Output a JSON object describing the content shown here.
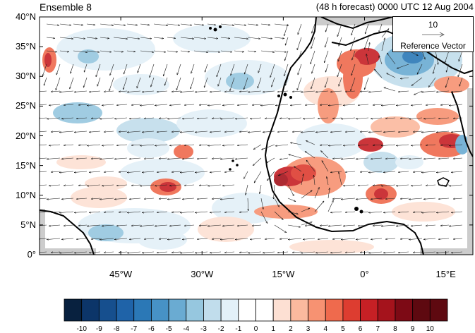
{
  "header": {
    "left_title": "Ensemble 8",
    "right_title": "(48 h forecast) 0000 UTC 12 Aug 2004"
  },
  "map": {
    "lat_labels": [
      "40°N",
      "35°N",
      "30°N",
      "25°N",
      "20°N",
      "15°N",
      "10°N",
      "5°N",
      "0°"
    ],
    "lon_labels": [
      "45°W",
      "30°W",
      "15°W",
      "0°",
      "15°E"
    ],
    "extent": {
      "lon_min": -60,
      "lon_max": 20,
      "lat_min": 0,
      "lat_max": 40
    }
  },
  "reference_vector": {
    "magnitude": "10",
    "label": "Reference Vector"
  },
  "colorbar": {
    "labels": [
      "-10",
      "-9",
      "-8",
      "-7",
      "-6",
      "-5",
      "-4",
      "-3",
      "-2",
      "-1",
      "0",
      "1",
      "2",
      "3",
      "4",
      "5",
      "6",
      "7",
      "8",
      "9",
      "10"
    ],
    "colors": [
      "#08213f",
      "#0c3569",
      "#164f8e",
      "#1f63a8",
      "#2b78b6",
      "#4792c6",
      "#6aabd2",
      "#96c7df",
      "#c1ddec",
      "#e3f0f8",
      "#ffffff",
      "#ffffff",
      "#fde0d3",
      "#fbb99e",
      "#f79272",
      "#ef6a4d",
      "#dd3d30",
      "#c62025",
      "#a5131c",
      "#7d0a15",
      "#5e0910"
    ]
  }
}
